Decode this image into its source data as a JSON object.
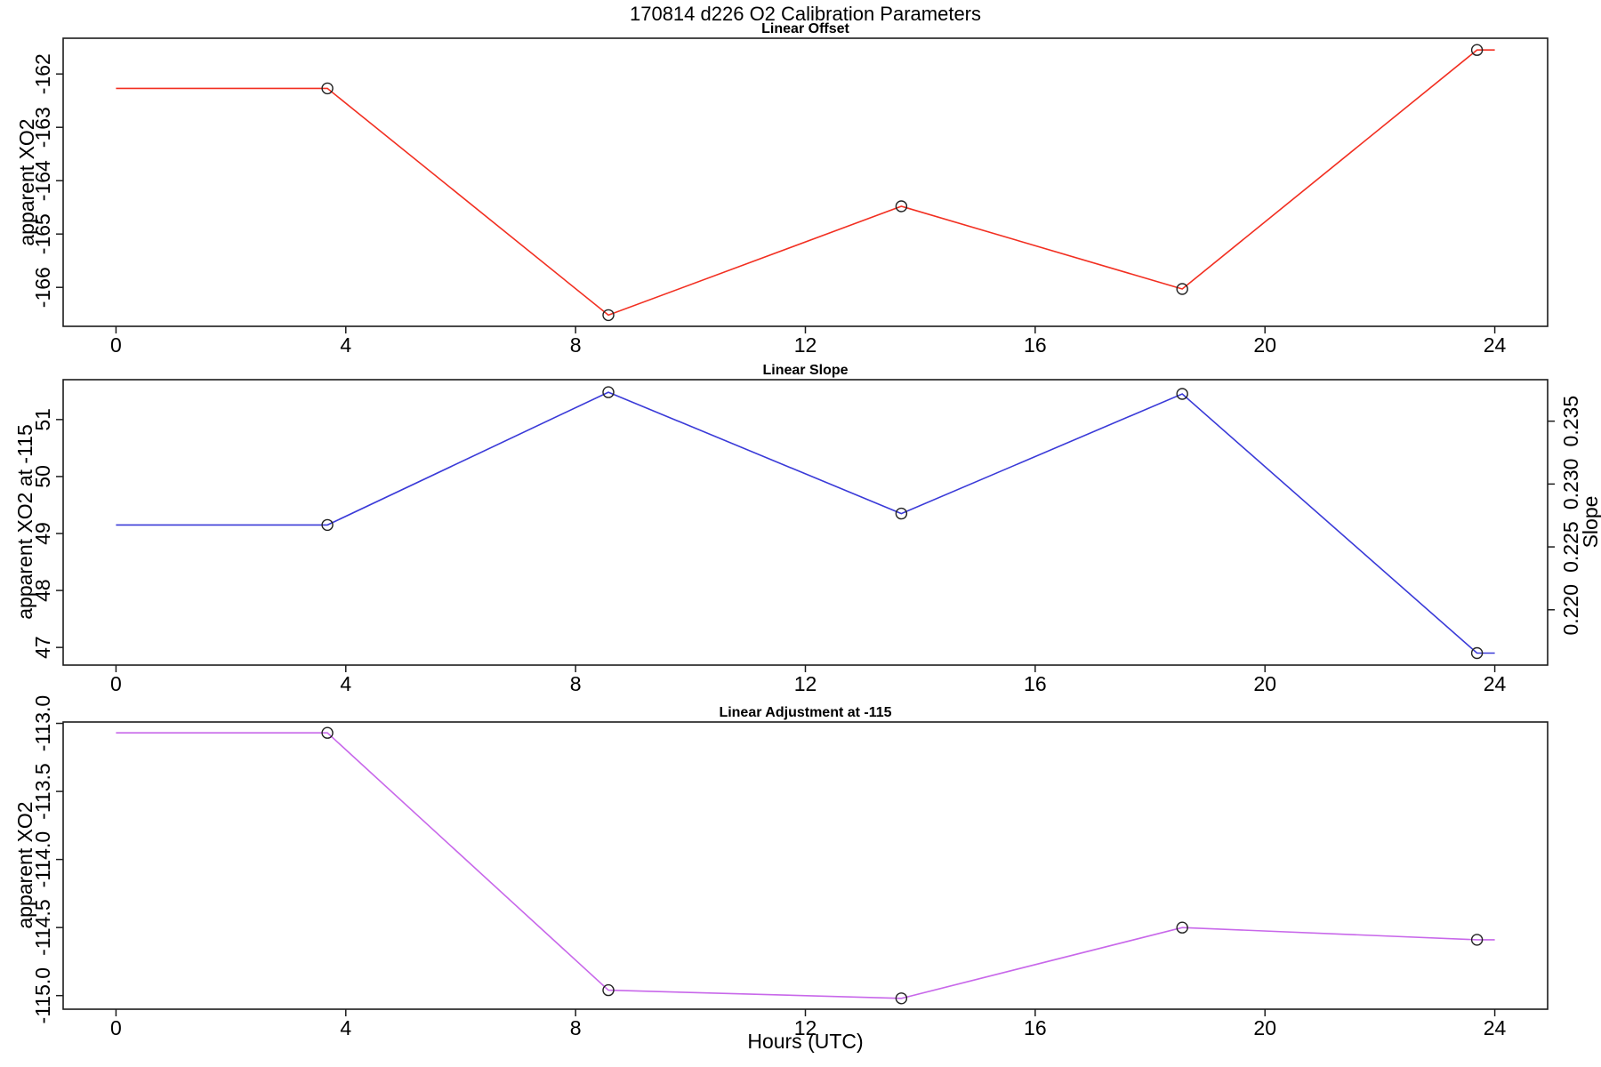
{
  "figure": {
    "title": "170814   d226   O2 Calibration Parameters",
    "xlabel": "Hours (UTC)",
    "background": "#ffffff"
  },
  "chart_data": [
    {
      "type": "line",
      "title": "Linear Offset",
      "ylabel": "apparent XO2",
      "color": "#f22f21",
      "marker": "open-circle",
      "x": [
        0,
        3.68,
        8.57,
        13.67,
        18.56,
        23.69,
        24.0
      ],
      "y": [
        -162.27,
        -162.27,
        -166.52,
        -164.48,
        -166.03,
        -161.55,
        -161.55
      ],
      "marker_x": [
        3.68,
        8.57,
        13.67,
        18.56,
        23.69
      ],
      "marker_y": [
        -162.27,
        -166.52,
        -164.48,
        -166.03,
        -161.55
      ],
      "yticks": [
        -162,
        -163,
        -164,
        -165,
        -166
      ],
      "ytick_labels": [
        "-162",
        "-163",
        "-164",
        "-165",
        "-166"
      ],
      "ylim": [
        -166.73,
        -161.33
      ],
      "xticks": [
        0,
        4,
        8,
        12,
        16,
        20,
        24
      ],
      "xtick_labels": [
        "0",
        "4",
        "8",
        "12",
        "16",
        "20",
        "24"
      ],
      "xlim": [
        -0.92,
        24.92
      ],
      "grid": false
    },
    {
      "type": "line",
      "title": "Linear Slope",
      "ylabel": "apparent XO2 at -115",
      "y2label": "Slope",
      "color": "#3a3ad8",
      "marker": "open-circle",
      "x": [
        0,
        3.68,
        8.57,
        13.67,
        18.56,
        23.69,
        24.0
      ],
      "y": [
        49.15,
        49.15,
        51.48,
        49.35,
        51.45,
        46.9,
        46.9
      ],
      "marker_x": [
        3.68,
        8.57,
        13.67,
        18.56,
        23.69
      ],
      "marker_y": [
        49.15,
        51.48,
        49.35,
        51.45,
        46.9
      ],
      "yticks": [
        51,
        50,
        49,
        48,
        47
      ],
      "ytick_labels": [
        "51",
        "50",
        "49",
        "48",
        "47"
      ],
      "ylim": [
        46.69,
        51.7
      ],
      "y2ticks": [
        0.235,
        0.23,
        0.225,
        0.22
      ],
      "y2tick_labels": [
        "0.235",
        "0.230",
        "0.225",
        "0.220"
      ],
      "y2lim": [
        0.2156,
        0.2383
      ],
      "xticks": [
        0,
        4,
        8,
        12,
        16,
        20,
        24
      ],
      "xtick_labels": [
        "0",
        "4",
        "8",
        "12",
        "16",
        "20",
        "24"
      ],
      "xlim": [
        -0.92,
        24.92
      ],
      "grid": false
    },
    {
      "type": "line",
      "title": "Linear Adjustment at -115",
      "ylabel": "apparent XO2",
      "color": "#c868ea",
      "marker": "open-circle",
      "x": [
        0,
        3.68,
        8.57,
        13.67,
        18.56,
        23.69,
        24.0
      ],
      "y": [
        -113.07,
        -113.07,
        -114.96,
        -115.02,
        -114.5,
        -114.59,
        -114.59
      ],
      "marker_x": [
        3.68,
        8.57,
        13.67,
        18.56,
        23.69
      ],
      "marker_y": [
        -113.07,
        -114.96,
        -115.02,
        -114.5,
        -114.59
      ],
      "yticks": [
        -113.0,
        -113.5,
        -114.0,
        -114.5,
        -115.0
      ],
      "ytick_labels": [
        "-113.0",
        "-113.5",
        "-114.0",
        "-114.5",
        "-115.0"
      ],
      "ylim": [
        -115.1,
        -112.99
      ],
      "xticks": [
        0,
        4,
        8,
        12,
        16,
        20,
        24
      ],
      "xtick_labels": [
        "0",
        "4",
        "8",
        "12",
        "16",
        "20",
        "24"
      ],
      "xlim": [
        -0.92,
        24.92
      ],
      "grid": false
    }
  ]
}
